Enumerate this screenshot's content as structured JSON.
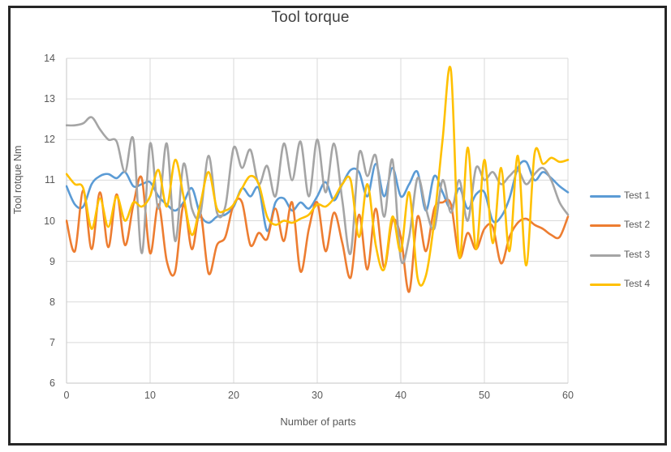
{
  "window": {
    "background_color": "#ffffff",
    "frame_border_color": "#262626"
  },
  "chart_data": {
    "type": "line",
    "title": "Tool torque",
    "xlabel": "Number of parts",
    "ylabel": "Tool rotque Nm",
    "xlim": [
      0,
      60
    ],
    "ylim": [
      6,
      14
    ],
    "xticks": [
      0,
      10,
      20,
      30,
      40,
      50,
      60
    ],
    "yticks": [
      6,
      7,
      8,
      9,
      10,
      11,
      12,
      13,
      14
    ],
    "grid": true,
    "smoothed_lines": true,
    "legend_position": "right",
    "colors": {
      "gridline": "#d9d9d9",
      "axis_line": "#d0d0d0",
      "axis_text": "#595959",
      "title_text": "#3f3f3f"
    },
    "x": [
      0,
      1,
      2,
      3,
      4,
      5,
      6,
      7,
      8,
      9,
      10,
      11,
      12,
      13,
      14,
      15,
      16,
      17,
      18,
      19,
      20,
      21,
      22,
      23,
      24,
      25,
      26,
      27,
      28,
      29,
      30,
      31,
      32,
      33,
      34,
      35,
      36,
      37,
      38,
      39,
      40,
      41,
      42,
      43,
      44,
      45,
      46,
      47,
      48,
      49,
      50,
      51,
      52,
      53,
      54,
      55,
      56,
      57,
      58,
      59,
      60
    ],
    "series": [
      {
        "name": "Test 1",
        "color": "#5B9BD5",
        "values": [
          10.85,
          10.4,
          10.35,
          10.9,
          11.1,
          11.15,
          11.05,
          11.2,
          10.85,
          10.9,
          10.95,
          10.6,
          10.4,
          10.25,
          10.45,
          10.8,
          10.15,
          9.95,
          10.1,
          10.15,
          10.35,
          10.8,
          10.6,
          10.8,
          9.75,
          10.45,
          10.55,
          10.25,
          10.45,
          10.3,
          10.6,
          10.95,
          10.5,
          10.9,
          11.25,
          11.2,
          10.6,
          11.4,
          10.6,
          11.3,
          10.6,
          10.9,
          11.2,
          10.25,
          11.1,
          10.7,
          10.3,
          10.8,
          10.3,
          10.65,
          10.7,
          10.0,
          10.1,
          10.55,
          11.3,
          11.45,
          11.0,
          11.2,
          11.05,
          10.85,
          10.7
        ]
      },
      {
        "name": "Test 2",
        "color": "#ED7D31",
        "values": [
          10.0,
          9.25,
          10.75,
          9.3,
          10.7,
          9.35,
          10.65,
          9.4,
          10.4,
          11.05,
          9.2,
          10.4,
          9.0,
          8.75,
          10.4,
          9.3,
          10.2,
          8.7,
          9.4,
          9.6,
          10.4,
          10.45,
          9.4,
          9.7,
          9.55,
          10.3,
          9.5,
          10.45,
          8.75,
          9.8,
          10.45,
          9.25,
          10.2,
          9.45,
          8.6,
          10.15,
          8.8,
          10.3,
          8.85,
          10.0,
          9.6,
          8.25,
          10.1,
          9.25,
          10.3,
          10.45,
          10.4,
          9.1,
          9.7,
          9.3,
          9.8,
          9.85,
          8.95,
          9.6,
          9.95,
          10.05,
          9.9,
          9.8,
          9.65,
          9.6,
          10.1
        ]
      },
      {
        "name": "Test 3",
        "color": "#A5A5A5",
        "values": [
          12.35,
          12.35,
          12.4,
          12.55,
          12.25,
          12.0,
          11.95,
          11.2,
          12.0,
          9.2,
          11.9,
          10.3,
          11.9,
          9.5,
          11.4,
          10.3,
          10.15,
          11.6,
          10.2,
          10.35,
          11.8,
          11.3,
          11.75,
          10.9,
          11.35,
          10.6,
          11.9,
          11.0,
          11.95,
          10.6,
          12.0,
          10.7,
          11.9,
          10.5,
          9.2,
          11.65,
          11.1,
          11.6,
          10.1,
          11.5,
          9.05,
          9.6,
          11.05,
          10.3,
          9.8,
          11.0,
          10.2,
          11.0,
          10.0,
          11.3,
          11.0,
          11.2,
          10.9,
          11.1,
          11.25,
          10.9,
          11.15,
          11.3,
          11.0,
          10.45,
          10.15
        ]
      },
      {
        "name": "Test 4",
        "color": "#FFC000",
        "values": [
          11.15,
          10.9,
          10.8,
          9.8,
          10.55,
          9.85,
          10.6,
          10.0,
          10.45,
          10.35,
          10.6,
          11.25,
          10.35,
          11.5,
          10.6,
          9.65,
          10.4,
          11.2,
          10.3,
          10.25,
          10.4,
          10.8,
          11.1,
          10.9,
          10.1,
          9.9,
          10.0,
          9.95,
          10.05,
          10.15,
          10.4,
          10.35,
          10.55,
          10.9,
          11.0,
          9.6,
          10.9,
          9.4,
          8.8,
          10.1,
          9.25,
          10.7,
          8.6,
          8.65,
          10.0,
          12.0,
          13.7,
          9.1,
          11.8,
          9.3,
          11.5,
          9.45,
          11.3,
          9.25,
          11.6,
          8.9,
          11.65,
          11.4,
          11.55,
          11.45,
          11.5
        ]
      }
    ]
  }
}
